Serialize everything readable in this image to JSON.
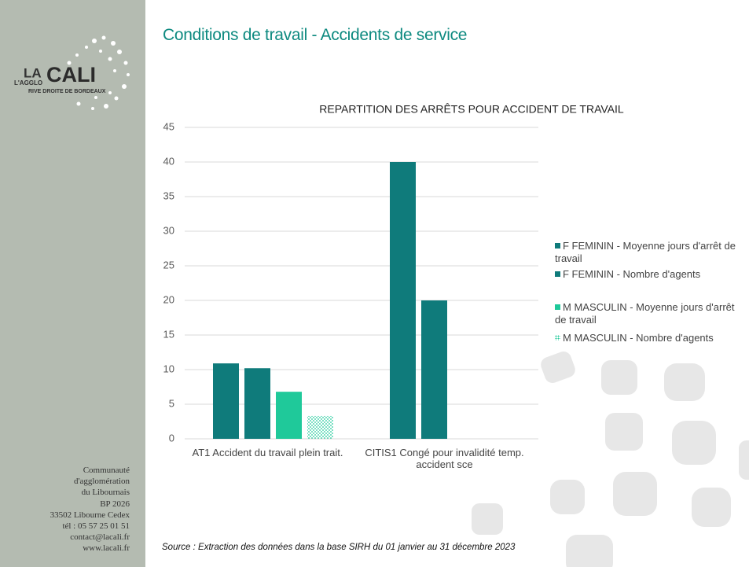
{
  "header": {
    "title": "Conditions de travail - Accidents de service"
  },
  "logo": {
    "la": "LA",
    "cali": "CALI",
    "agglo": "L'AGGLO",
    "tagline": "RIVE DROITE DE BORDEAUX"
  },
  "contact": [
    "Communauté",
    "d'agglomération",
    "du Libournais",
    "BP 2026",
    "33502 Libourne Cedex",
    "tél : 05 57 25 01 51",
    "contact@lacali.fr",
    "www.lacali.fr"
  ],
  "source": "Source : Extraction des données dans la base SIRH du 01 janvier au 31 décembre 2023",
  "chart_data": {
    "type": "bar",
    "title": "REPARTITION DES ARRÊTS POUR ACCIDENT DE TRAVAIL",
    "categories": [
      "AT1 Accident du travail plein trait.",
      "CITIS1 Congé pour invalidité temp. accident sce"
    ],
    "series": [
      {
        "name": "F FEMININ - Moyenne jours d'arrêt de travail",
        "color": "#0f7b7b",
        "values": [
          10.9,
          40
        ]
      },
      {
        "name": "F FEMININ - Nombre d'agents",
        "color": "#0f7b7b",
        "values": [
          10.2,
          20
        ]
      },
      {
        "name": "M MASCULIN - Moyenne jours d'arrêt de travail",
        "color": "#1fc99a",
        "values": [
          6.8,
          null
        ]
      },
      {
        "name": "M MASCULIN - Nombre d'agents",
        "color": "#1fc99a",
        "pattern": "dots",
        "values": [
          3.3,
          null
        ]
      }
    ],
    "ylim": [
      0,
      45
    ],
    "yticks": [
      0,
      5,
      10,
      15,
      20,
      25,
      30,
      35,
      40,
      45
    ],
    "grid": true,
    "legend": "right"
  }
}
